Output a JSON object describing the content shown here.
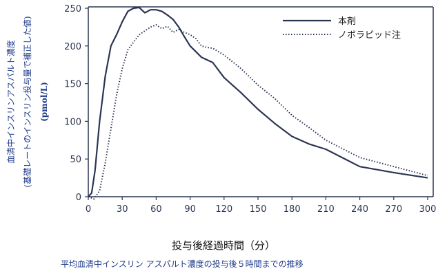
{
  "chart_data": {
    "type": "line",
    "xlabel": "投与後経過時間（分）",
    "ylabel_lines": [
      "血清中インスリンアスパルト濃度",
      "(基礎レートのインスリン投与量で補正した値)",
      "(pmol/L)"
    ],
    "caption": "平均血清中インスリン アスパルト濃度の投与後５時間までの推移",
    "xlim": [
      0,
      300
    ],
    "ylim": [
      0,
      250
    ],
    "x_ticks": [
      0,
      30,
      60,
      90,
      120,
      150,
      180,
      210,
      240,
      270,
      300
    ],
    "y_ticks": [
      0,
      50,
      100,
      150,
      200,
      250
    ],
    "grid": false,
    "legend_position": "top-right",
    "series": [
      {
        "name": "本剤",
        "style": "solid",
        "color": "#2b3553",
        "x": [
          0,
          3,
          6,
          10,
          15,
          20,
          25,
          30,
          35,
          40,
          45,
          50,
          55,
          60,
          65,
          70,
          75,
          80,
          85,
          90,
          100,
          110,
          120,
          135,
          150,
          165,
          180,
          195,
          210,
          240,
          270,
          300
        ],
        "y": [
          0,
          5,
          35,
          100,
          160,
          200,
          215,
          232,
          246,
          250,
          251,
          244,
          248,
          248,
          246,
          241,
          235,
          225,
          212,
          200,
          185,
          178,
          158,
          138,
          116,
          97,
          80,
          70,
          63,
          40,
          32,
          25
        ]
      },
      {
        "name": "ノボラピッド注",
        "style": "dotted",
        "color": "#2b3553",
        "x": [
          0,
          5,
          10,
          15,
          20,
          25,
          30,
          35,
          40,
          45,
          50,
          55,
          60,
          65,
          70,
          75,
          80,
          85,
          90,
          95,
          100,
          105,
          110,
          120,
          135,
          150,
          165,
          180,
          195,
          210,
          240,
          270,
          300
        ],
        "y": [
          0,
          -3,
          8,
          45,
          90,
          135,
          170,
          195,
          205,
          215,
          220,
          225,
          228,
          223,
          226,
          218,
          222,
          218,
          215,
          210,
          200,
          198,
          197,
          188,
          170,
          148,
          130,
          108,
          92,
          75,
          52,
          40,
          28
        ]
      }
    ]
  }
}
